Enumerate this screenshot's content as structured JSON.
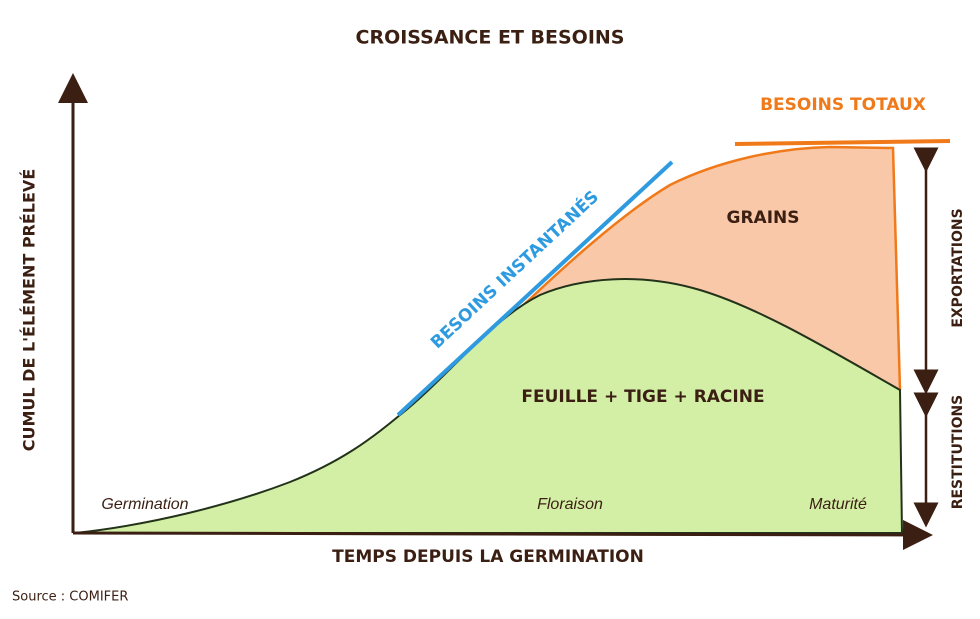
{
  "title": "CROISSANCE ET BESOINS",
  "x_axis_label": "TEMPS DEPUIS LA GERMINATION",
  "y_axis_label": "CUMUL DE L'ÉLÉMENT PRÉLEVÉ",
  "labels": {
    "besoins_totaux": "BESOINS TOTAUX",
    "besoins_instantanes": "BESOINS INSTANTANÉS",
    "grains": "GRAINS",
    "vegetative": "FEUILLE + TIGE + RACINE"
  },
  "stages": [
    "Germination",
    "Floraison",
    "Maturité"
  ],
  "right_labels": {
    "exportations": "EXPORTATIONS",
    "restitutions": "RESTITUTIONS"
  },
  "source": "Source : COMIFER"
}
